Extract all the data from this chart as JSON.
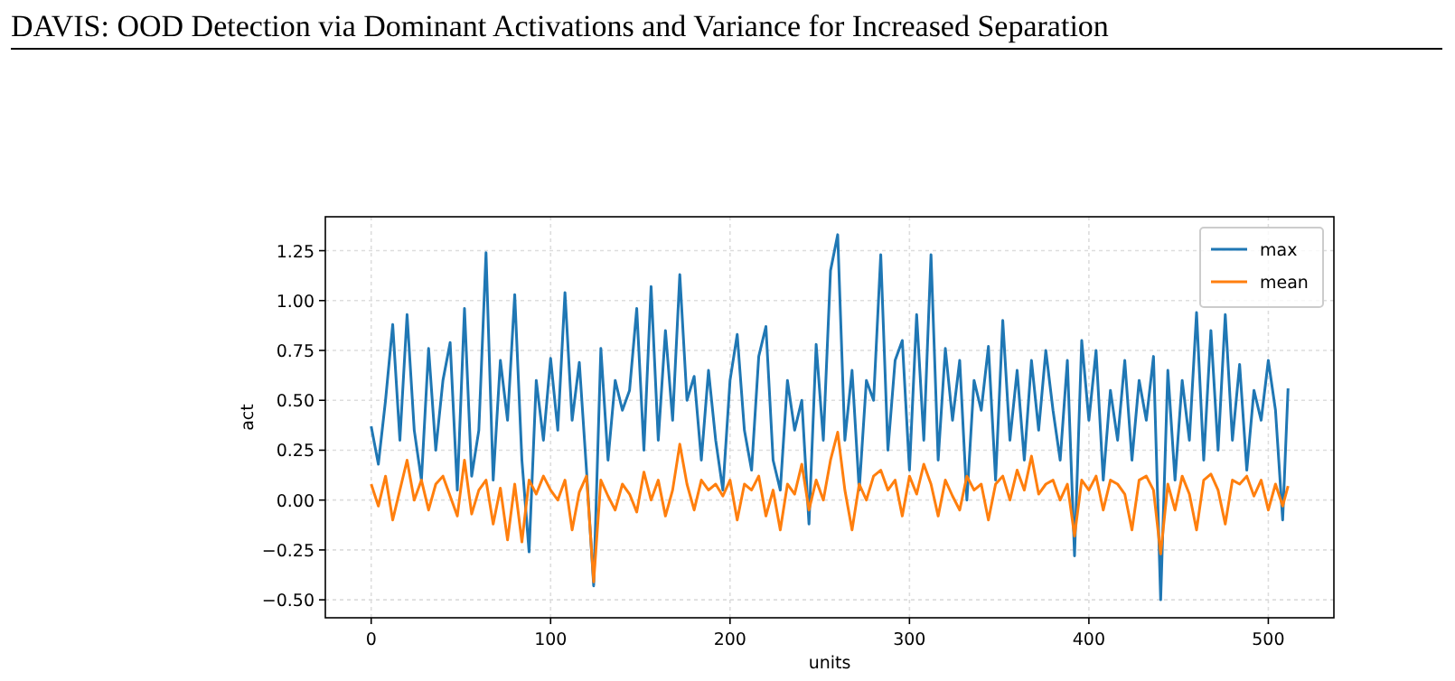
{
  "chart_data": {
    "type": "line",
    "annotations": [
      "DAVIS: OOD Detection via Dominant Activations and Variance for Increased Separation"
    ],
    "xlabel": "units",
    "ylabel": "act",
    "x": [
      0,
      4,
      8,
      12,
      16,
      20,
      24,
      28,
      32,
      36,
      40,
      44,
      48,
      52,
      56,
      60,
      64,
      68,
      72,
      76,
      80,
      84,
      88,
      92,
      96,
      100,
      104,
      108,
      112,
      116,
      120,
      124,
      128,
      132,
      136,
      140,
      144,
      148,
      152,
      156,
      160,
      164,
      168,
      172,
      176,
      180,
      184,
      188,
      192,
      196,
      200,
      204,
      208,
      212,
      216,
      220,
      224,
      228,
      232,
      236,
      240,
      244,
      248,
      252,
      256,
      260,
      264,
      268,
      272,
      276,
      280,
      284,
      288,
      292,
      296,
      300,
      304,
      308,
      312,
      316,
      320,
      324,
      328,
      332,
      336,
      340,
      344,
      348,
      352,
      356,
      360,
      364,
      368,
      372,
      376,
      380,
      384,
      388,
      392,
      396,
      400,
      404,
      408,
      412,
      416,
      420,
      424,
      428,
      432,
      436,
      440,
      444,
      448,
      452,
      456,
      460,
      464,
      468,
      472,
      476,
      480,
      484,
      488,
      492,
      496,
      500,
      504,
      508,
      511
    ],
    "series": [
      {
        "name": "max",
        "color": "#1f77b4",
        "values": [
          0.37,
          0.18,
          0.5,
          0.88,
          0.3,
          0.93,
          0.35,
          0.1,
          0.76,
          0.25,
          0.6,
          0.79,
          0.05,
          0.96,
          0.12,
          0.35,
          1.24,
          0.1,
          0.7,
          0.4,
          1.03,
          0.2,
          -0.26,
          0.6,
          0.3,
          0.71,
          0.35,
          1.04,
          0.4,
          0.69,
          0.15,
          -0.43,
          0.76,
          0.2,
          0.6,
          0.45,
          0.55,
          0.96,
          0.25,
          1.07,
          0.3,
          0.85,
          0.4,
          1.13,
          0.5,
          0.62,
          0.2,
          0.65,
          0.3,
          0.05,
          0.6,
          0.83,
          0.35,
          0.15,
          0.72,
          0.87,
          0.2,
          0.05,
          0.6,
          0.35,
          0.5,
          -0.12,
          0.78,
          0.3,
          1.15,
          1.33,
          0.3,
          0.65,
          0.05,
          0.6,
          0.5,
          1.23,
          0.25,
          0.7,
          0.8,
          0.15,
          0.93,
          0.3,
          1.23,
          0.2,
          0.76,
          0.4,
          0.7,
          0.0,
          0.6,
          0.45,
          0.77,
          0.1,
          0.9,
          0.3,
          0.65,
          0.2,
          0.7,
          0.35,
          0.75,
          0.45,
          0.2,
          0.7,
          -0.28,
          0.8,
          0.4,
          0.75,
          0.1,
          0.55,
          0.3,
          0.7,
          0.2,
          0.6,
          0.4,
          0.72,
          -0.5,
          0.65,
          0.1,
          0.6,
          0.3,
          0.94,
          0.2,
          0.85,
          0.25,
          0.93,
          0.3,
          0.68,
          0.15,
          0.55,
          0.4,
          0.7,
          0.45,
          -0.1,
          0.56
        ]
      },
      {
        "name": "mean",
        "color": "#ff7f0e",
        "values": [
          0.08,
          -0.03,
          0.12,
          -0.1,
          0.05,
          0.2,
          0.0,
          0.1,
          -0.05,
          0.08,
          0.12,
          0.02,
          -0.08,
          0.2,
          -0.07,
          0.05,
          0.1,
          -0.12,
          0.06,
          -0.2,
          0.08,
          -0.21,
          0.1,
          0.03,
          0.12,
          0.05,
          0.0,
          0.1,
          -0.15,
          0.04,
          0.12,
          -0.41,
          0.1,
          0.02,
          -0.05,
          0.08,
          0.03,
          -0.06,
          0.14,
          0.0,
          0.1,
          -0.08,
          0.05,
          0.28,
          0.08,
          -0.05,
          0.1,
          0.05,
          0.08,
          0.02,
          0.1,
          -0.1,
          0.08,
          0.05,
          0.12,
          -0.08,
          0.05,
          -0.15,
          0.08,
          0.03,
          0.18,
          -0.05,
          0.1,
          0.0,
          0.2,
          0.34,
          0.05,
          -0.15,
          0.08,
          0.0,
          0.12,
          0.15,
          0.05,
          0.1,
          -0.08,
          0.12,
          0.03,
          0.18,
          0.08,
          -0.08,
          0.1,
          0.02,
          -0.05,
          0.12,
          0.05,
          0.08,
          -0.1,
          0.08,
          0.12,
          0.0,
          0.15,
          0.05,
          0.22,
          0.03,
          0.08,
          0.1,
          0.0,
          0.08,
          -0.18,
          0.1,
          0.05,
          0.12,
          -0.05,
          0.1,
          0.08,
          0.03,
          -0.15,
          0.1,
          0.12,
          0.05,
          -0.27,
          0.08,
          -0.05,
          0.12,
          0.03,
          -0.15,
          0.1,
          0.13,
          0.05,
          -0.12,
          0.1,
          0.08,
          0.12,
          0.02,
          0.1,
          -0.05,
          0.08,
          -0.03,
          0.07
        ]
      }
    ],
    "xlim": [
      -25.55,
      536.55
    ],
    "xticks": [
      0,
      100,
      200,
      300,
      400,
      500
    ],
    "ylim": [
      -0.59,
      1.42
    ],
    "yticks": [
      {
        "value": -0.5,
        "label": "−0.50"
      },
      {
        "value": -0.25,
        "label": "−0.25"
      },
      {
        "value": 0,
        "label": "0.00"
      },
      {
        "value": 0.25,
        "label": "0.25"
      },
      {
        "value": 0.5,
        "label": "0.50"
      },
      {
        "value": 0.75,
        "label": "0.75"
      },
      {
        "value": 1,
        "label": "1.00"
      },
      {
        "value": 1.25,
        "label": "1.25"
      }
    ],
    "grid": true,
    "legend": "top right",
    "line_style": "solid",
    "marker": "none"
  }
}
